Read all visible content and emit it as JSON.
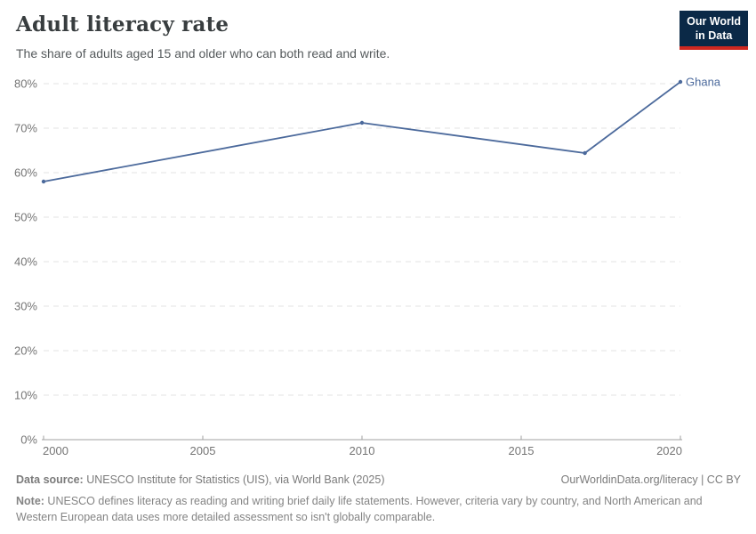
{
  "header": {
    "title": "Adult literacy rate",
    "subtitle": "The share of adults aged 15 and older who can both read and write.",
    "logo": {
      "line1": "Our World",
      "line2": "in Data"
    }
  },
  "chart_data": {
    "type": "line",
    "title": "Adult literacy rate",
    "series": [
      {
        "name": "Ghana",
        "points": [
          [
            2000,
            58.0
          ],
          [
            2010,
            71.2
          ],
          [
            2017,
            64.4
          ],
          [
            2020,
            80.4
          ]
        ]
      }
    ],
    "xlim": [
      2000,
      2020
    ],
    "ylim": [
      0,
      80
    ],
    "xticks": [
      2000,
      2005,
      2010,
      2015,
      2020
    ],
    "yticks": [
      0,
      10,
      20,
      30,
      40,
      50,
      60,
      70,
      80
    ],
    "ytick_suffix": "%",
    "grid": "horizontal-dashed",
    "legend_position": "end-of-line-label",
    "line_color": "#4C6A9C"
  },
  "footer": {
    "datasource_label": "Data source:",
    "datasource_text": " UNESCO Institute for Statistics (UIS), via World Bank (2025)",
    "attribution": "OurWorldinData.org/literacy | CC BY",
    "note_label": "Note:",
    "note_text": " UNESCO defines literacy as reading and writing brief daily life statements. However, criteria vary by country, and North American and Western European data uses more detailed assessment so isn't globally comparable."
  },
  "colors": {
    "line": "#4C6A9C",
    "grid": "#e3e3e3",
    "axis": "#a1a1a1",
    "tick_text": "#757575",
    "logo_bg": "#0b2947",
    "logo_accent": "#cf2820"
  }
}
